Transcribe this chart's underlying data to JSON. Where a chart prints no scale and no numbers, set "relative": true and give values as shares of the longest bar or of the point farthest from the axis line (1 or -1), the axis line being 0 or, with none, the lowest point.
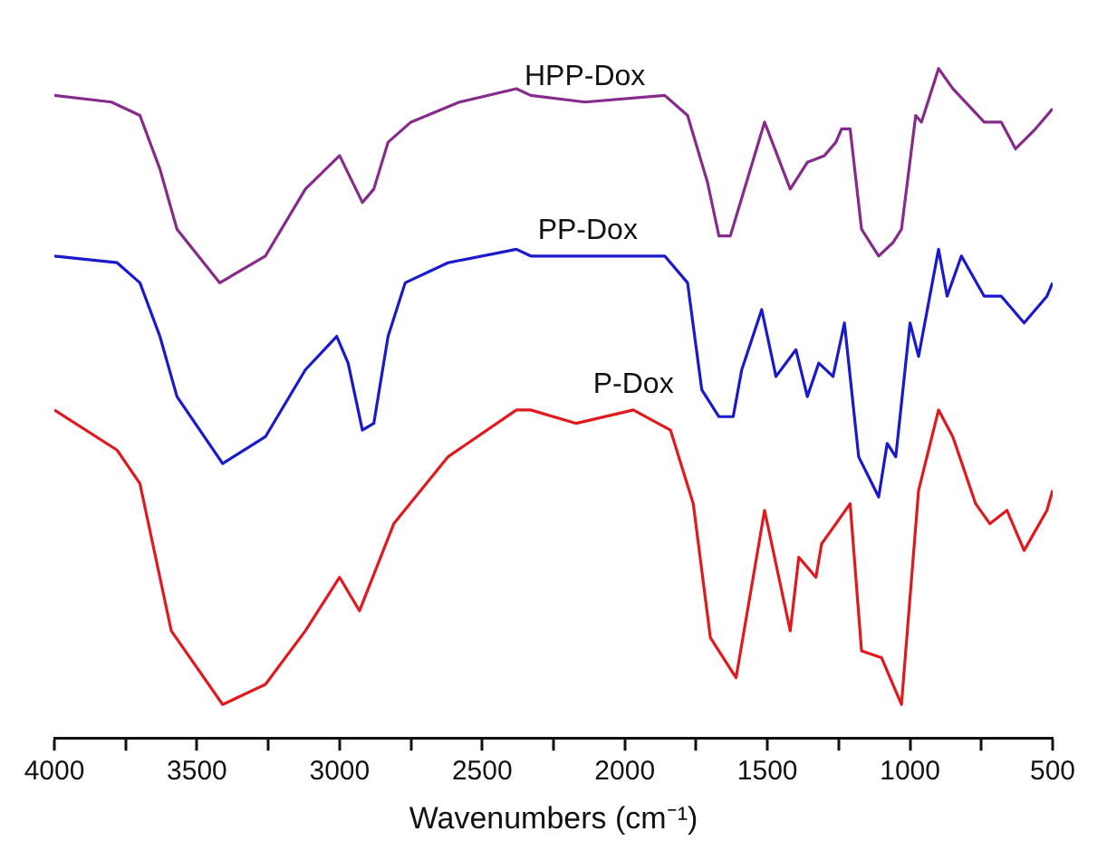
{
  "chart_data": {
    "type": "line",
    "xlabel": "Wavenumbers (cm⁻¹)",
    "relative": true,
    "xlim": [
      4000,
      500
    ],
    "xticks": [
      4000,
      {
        "value": 3750,
        "label": null
      },
      3500,
      {
        "value": 3250,
        "label": null
      },
      3000,
      {
        "value": 2750,
        "label": null
      },
      2500,
      {
        "value": 2250,
        "label": null
      },
      2000,
      {
        "value": 1750,
        "label": null
      },
      1500,
      {
        "value": 1250,
        "label": null
      },
      1000,
      {
        "value": 750,
        "label": null
      },
      500
    ],
    "grid": false,
    "legend": false,
    "marker": "none",
    "line_style": "solid",
    "series": [
      {
        "name": "HPP-Dox",
        "color": "#862b8b",
        "x": [
          4000,
          3800,
          3700,
          3630,
          3570,
          3420,
          3260,
          3120,
          3000,
          2920,
          2880,
          2830,
          2750,
          2580,
          2380,
          2330,
          2140,
          1860,
          1780,
          1710,
          1670,
          1630,
          1510,
          1420,
          1360,
          1300,
          1260,
          1240,
          1210,
          1170,
          1110,
          1060,
          1030,
          980,
          960,
          900,
          850,
          740,
          680,
          630,
          560,
          520,
          500
        ],
        "values": [
          0.96,
          0.95,
          0.93,
          0.85,
          0.76,
          0.68,
          0.72,
          0.82,
          0.87,
          0.8,
          0.82,
          0.89,
          0.92,
          0.95,
          0.97,
          0.96,
          0.95,
          0.96,
          0.93,
          0.83,
          0.75,
          0.75,
          0.92,
          0.82,
          0.86,
          0.87,
          0.89,
          0.91,
          0.91,
          0.76,
          0.72,
          0.74,
          0.76,
          0.93,
          0.92,
          1,
          0.97,
          0.92,
          0.92,
          0.88,
          0.91,
          0.93,
          0.94
        ]
      },
      {
        "name": "PP-Dox",
        "color": "#1a1acc",
        "x": [
          4000,
          3780,
          3700,
          3630,
          3570,
          3410,
          3260,
          3120,
          3010,
          2970,
          2920,
          2880,
          2830,
          2770,
          2620,
          2380,
          2330,
          2130,
          1860,
          1780,
          1730,
          1670,
          1620,
          1590,
          1520,
          1470,
          1400,
          1360,
          1320,
          1270,
          1230,
          1180,
          1110,
          1080,
          1050,
          1000,
          970,
          900,
          870,
          820,
          740,
          680,
          600,
          520,
          500
        ],
        "values": [
          0.72,
          0.71,
          0.68,
          0.6,
          0.51,
          0.41,
          0.45,
          0.55,
          0.6,
          0.56,
          0.46,
          0.47,
          0.6,
          0.68,
          0.71,
          0.73,
          0.72,
          0.72,
          0.72,
          0.68,
          0.52,
          0.48,
          0.48,
          0.55,
          0.64,
          0.54,
          0.58,
          0.51,
          0.56,
          0.54,
          0.62,
          0.42,
          0.36,
          0.44,
          0.42,
          0.62,
          0.57,
          0.73,
          0.66,
          0.72,
          0.66,
          0.66,
          0.62,
          0.66,
          0.68
        ]
      },
      {
        "name": "P-Dox",
        "color": "#e0191e",
        "x": [
          4000,
          3780,
          3700,
          3590,
          3410,
          3260,
          3120,
          3000,
          2930,
          2810,
          2620,
          2380,
          2330,
          2170,
          1970,
          1840,
          1760,
          1700,
          1610,
          1510,
          1420,
          1390,
          1330,
          1310,
          1260,
          1210,
          1170,
          1100,
          1030,
          970,
          900,
          850,
          770,
          720,
          660,
          600,
          520,
          500
        ],
        "values": [
          0.49,
          0.43,
          0.38,
          0.16,
          0.05,
          0.08,
          0.16,
          0.24,
          0.19,
          0.32,
          0.42,
          0.49,
          0.49,
          0.47,
          0.49,
          0.46,
          0.35,
          0.15,
          0.09,
          0.34,
          0.16,
          0.27,
          0.24,
          0.29,
          0.32,
          0.35,
          0.13,
          0.12,
          0.05,
          0.37,
          0.49,
          0.45,
          0.35,
          0.32,
          0.34,
          0.28,
          0.34,
          0.37
        ]
      }
    ]
  }
}
